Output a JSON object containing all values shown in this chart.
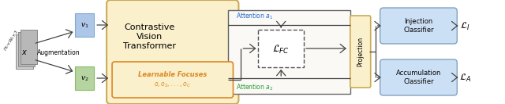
{
  "fig_width": 6.4,
  "fig_height": 1.33,
  "dpi": 100,
  "bg_color": "#ffffff",
  "color_input_patch": "#d0d0d0",
  "color_v1": "#aec6e8",
  "color_v1_edge": "#7aaacc",
  "color_v2": "#b5d4a0",
  "color_v2_edge": "#88bb66",
  "color_cvt_outer": "#faf0cc",
  "color_cvt_edge": "#ccaa55",
  "color_learnable_bg": "#faf0cc",
  "color_learnable_border": "#dd8822",
  "color_outer_rect": "#888888",
  "color_lfc_dash": "#555555",
  "color_classifier": "#cce0f5",
  "color_classifier_border": "#7799bb",
  "color_projection_bg": "#faf0cc",
  "color_projection_border": "#ccaa55",
  "color_attention1": "#2266cc",
  "color_attention2": "#229933",
  "color_arrow": "#444444",
  "cvt_title": "Contrastive\nVision\nTransformer",
  "learnable_label": "Learnable Focuses",
  "focuses_items": "o, o_2,..., o_C",
  "attention1_label": "Attention $a_1$",
  "attention2_label": "Attention $a_2$",
  "projection_label": "Projection",
  "inj_label": "Injection\nClassifier",
  "acc_label": "Accumulation\nClassifier"
}
